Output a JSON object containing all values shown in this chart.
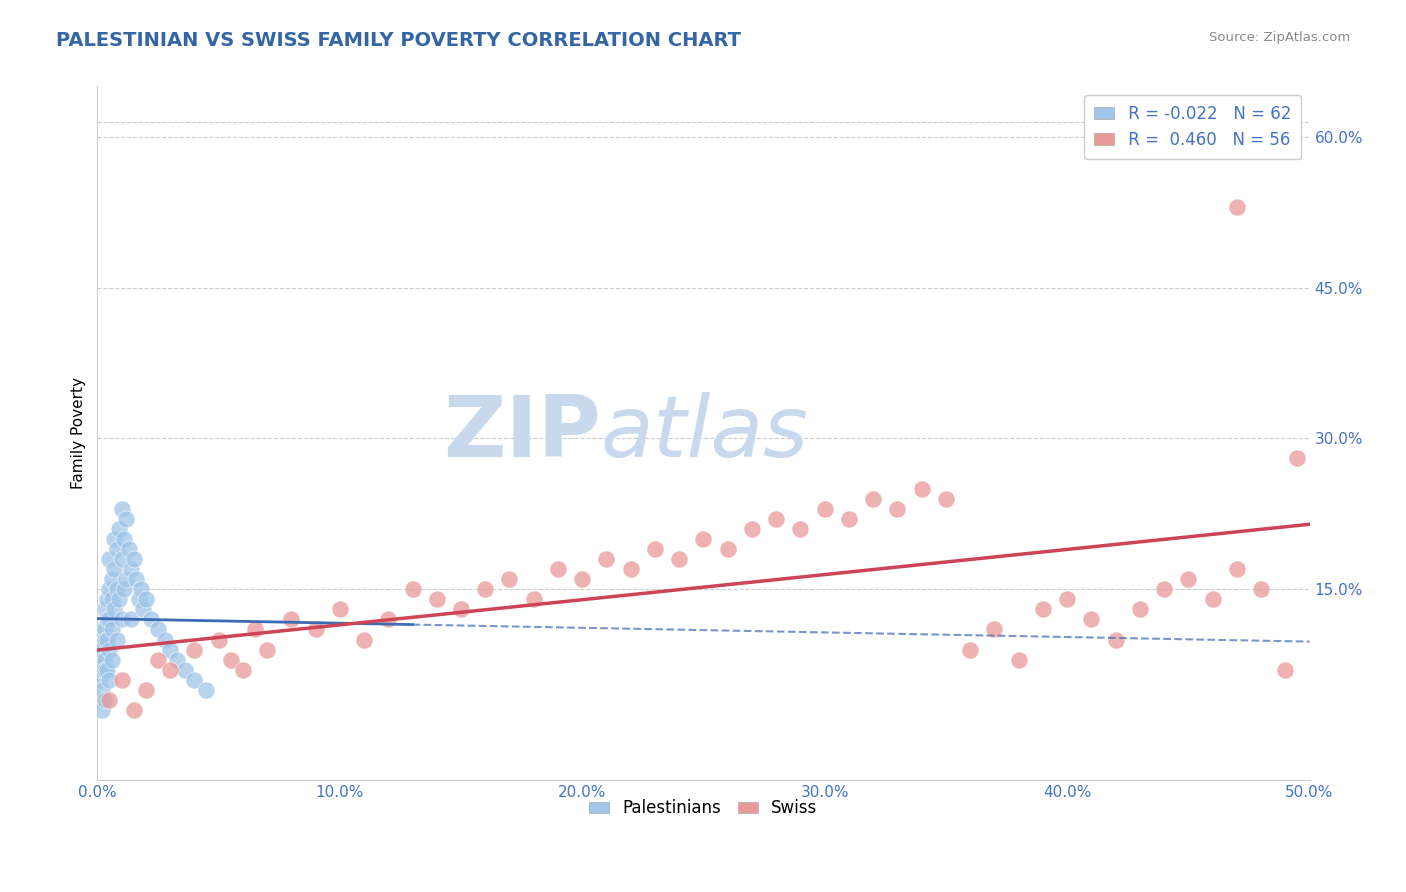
{
  "title": "PALESTINIAN VS SWISS FAMILY POVERTY CORRELATION CHART",
  "source": "Source: ZipAtlas.com",
  "ylabel": "Family Poverty",
  "xlim": [
    0.0,
    0.5
  ],
  "ylim": [
    -0.04,
    0.65
  ],
  "xtick_vals": [
    0.0,
    0.1,
    0.2,
    0.3,
    0.4,
    0.5
  ],
  "xtick_labels": [
    "0.0%",
    "10.0%",
    "20.0%",
    "30.0%",
    "40.0%",
    "50.0%"
  ],
  "ytick_vals": [
    0.15,
    0.3,
    0.45,
    0.6
  ],
  "ytick_labels": [
    "15.0%",
    "30.0%",
    "45.0%",
    "60.0%"
  ],
  "title_color": "#3465a4",
  "axis_tick_color": "#4472c4",
  "source_color": "#888888",
  "blue_scatter_color": "#9fc5e8",
  "pink_scatter_color": "#ea9999",
  "blue_line_color": "#3d6bb3",
  "pink_line_color": "#cc4455",
  "grid_color": "#cccccc",
  "background_color": "#ffffff",
  "legend_r1": "R = -0.022",
  "legend_n1": "N = 62",
  "legend_r2": "R =  0.460",
  "legend_n2": "N = 56",
  "legend_labels": [
    "Palestinians",
    "Swiss"
  ],
  "watermark_zip": "ZIP",
  "watermark_atlas": "atlas",
  "watermark_zip_color": "#c8d8ed",
  "watermark_atlas_color": "#c8d8ed",
  "pal_x": [
    0.001,
    0.001,
    0.001,
    0.001,
    0.001,
    0.002,
    0.002,
    0.002,
    0.002,
    0.002,
    0.002,
    0.003,
    0.003,
    0.003,
    0.003,
    0.003,
    0.003,
    0.004,
    0.004,
    0.004,
    0.004,
    0.005,
    0.005,
    0.005,
    0.005,
    0.005,
    0.006,
    0.006,
    0.006,
    0.006,
    0.007,
    0.007,
    0.007,
    0.008,
    0.008,
    0.008,
    0.009,
    0.009,
    0.01,
    0.01,
    0.01,
    0.011,
    0.011,
    0.012,
    0.012,
    0.013,
    0.014,
    0.014,
    0.015,
    0.016,
    0.017,
    0.018,
    0.019,
    0.02,
    0.022,
    0.025,
    0.028,
    0.03,
    0.033,
    0.036,
    0.04,
    0.045
  ],
  "pal_y": [
    0.08,
    0.1,
    0.09,
    0.06,
    0.04,
    0.11,
    0.09,
    0.08,
    0.07,
    0.05,
    0.03,
    0.13,
    0.11,
    0.1,
    0.08,
    0.07,
    0.04,
    0.14,
    0.12,
    0.1,
    0.07,
    0.18,
    0.15,
    0.12,
    0.09,
    0.06,
    0.16,
    0.14,
    0.11,
    0.08,
    0.2,
    0.17,
    0.13,
    0.19,
    0.15,
    0.1,
    0.21,
    0.14,
    0.23,
    0.18,
    0.12,
    0.2,
    0.15,
    0.22,
    0.16,
    0.19,
    0.17,
    0.12,
    0.18,
    0.16,
    0.14,
    0.15,
    0.13,
    0.14,
    0.12,
    0.11,
    0.1,
    0.09,
    0.08,
    0.07,
    0.06,
    0.05
  ],
  "swiss_x": [
    0.005,
    0.01,
    0.015,
    0.02,
    0.025,
    0.03,
    0.04,
    0.05,
    0.055,
    0.06,
    0.065,
    0.07,
    0.08,
    0.09,
    0.1,
    0.11,
    0.12,
    0.13,
    0.14,
    0.15,
    0.16,
    0.17,
    0.18,
    0.19,
    0.2,
    0.21,
    0.22,
    0.23,
    0.24,
    0.25,
    0.26,
    0.27,
    0.28,
    0.29,
    0.3,
    0.31,
    0.32,
    0.33,
    0.34,
    0.35,
    0.36,
    0.37,
    0.38,
    0.39,
    0.4,
    0.41,
    0.42,
    0.43,
    0.44,
    0.45,
    0.46,
    0.47,
    0.48,
    0.49,
    0.495,
    0.47
  ],
  "swiss_y": [
    0.04,
    0.06,
    0.03,
    0.05,
    0.08,
    0.07,
    0.09,
    0.1,
    0.08,
    0.07,
    0.11,
    0.09,
    0.12,
    0.11,
    0.13,
    0.1,
    0.12,
    0.15,
    0.14,
    0.13,
    0.15,
    0.16,
    0.14,
    0.17,
    0.16,
    0.18,
    0.17,
    0.19,
    0.18,
    0.2,
    0.19,
    0.21,
    0.22,
    0.21,
    0.23,
    0.22,
    0.24,
    0.23,
    0.25,
    0.24,
    0.09,
    0.11,
    0.08,
    0.13,
    0.14,
    0.12,
    0.1,
    0.13,
    0.15,
    0.16,
    0.14,
    0.17,
    0.15,
    0.07,
    0.28,
    0.53
  ]
}
